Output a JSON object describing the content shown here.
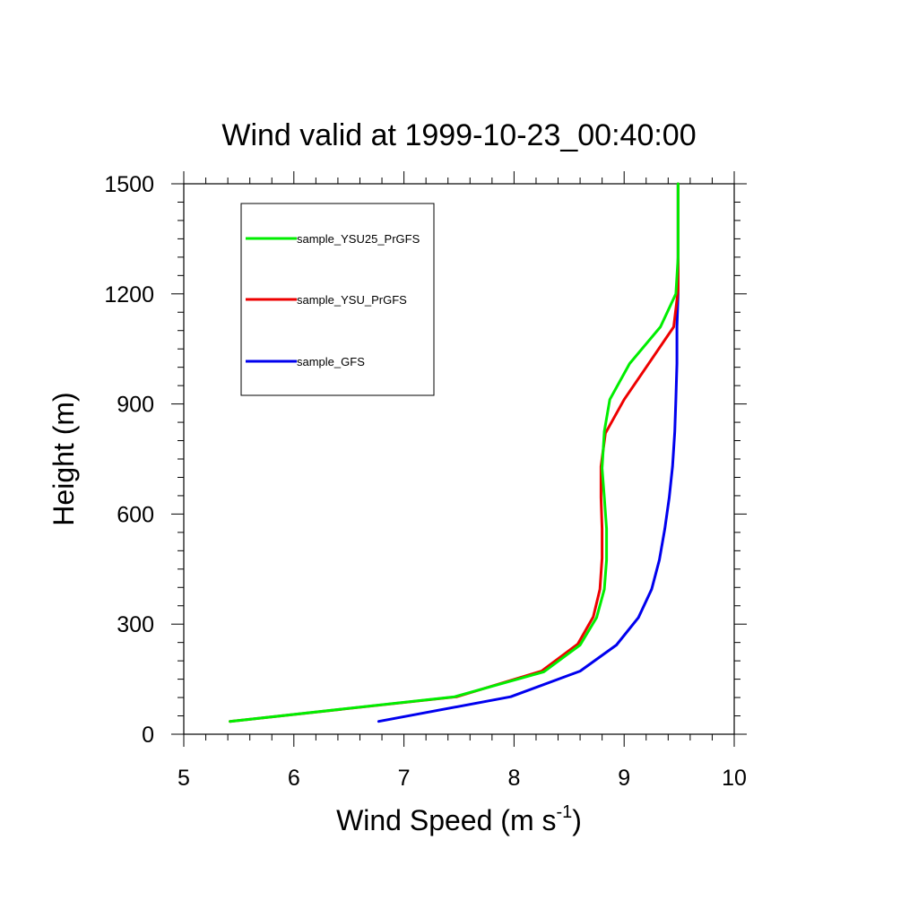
{
  "chart_data": {
    "type": "line",
    "title": "Wind valid at 1999-10-23_00:40:00",
    "xlabel": "Wind Speed (m s",
    "xlabel_sup": "-1",
    "xlabel_end": ")",
    "ylabel": "Height (m)",
    "xlim": [
      5,
      10
    ],
    "ylim": [
      0,
      1500
    ],
    "x_ticks": [
      "5",
      "6",
      "7",
      "8",
      "9",
      "10"
    ],
    "y_ticks": [
      "0",
      "300",
      "600",
      "900",
      "1200",
      "1500"
    ],
    "grid": false,
    "legend_position": "top-left",
    "series": [
      {
        "name": "sample_YSU25_PrGFS",
        "color": "#00ee00",
        "points": [
          [
            5.42,
            35
          ],
          [
            7.46,
            102
          ],
          [
            8.27,
            170
          ],
          [
            8.6,
            243
          ],
          [
            8.75,
            318
          ],
          [
            8.82,
            395
          ],
          [
            8.84,
            475
          ],
          [
            8.84,
            560
          ],
          [
            8.82,
            645
          ],
          [
            8.8,
            725
          ],
          [
            8.82,
            825
          ],
          [
            8.87,
            912
          ],
          [
            9.05,
            1010
          ],
          [
            9.33,
            1110
          ],
          [
            9.47,
            1200
          ],
          [
            9.49,
            1300
          ],
          [
            9.49,
            1500
          ]
        ]
      },
      {
        "name": "sample_YSU_PrGFS",
        "color": "#ee0000",
        "points": [
          [
            5.42,
            35
          ],
          [
            7.48,
            102
          ],
          [
            8.25,
            172
          ],
          [
            8.58,
            246
          ],
          [
            8.72,
            320
          ],
          [
            8.78,
            395
          ],
          [
            8.8,
            480
          ],
          [
            8.8,
            560
          ],
          [
            8.79,
            645
          ],
          [
            8.79,
            730
          ],
          [
            8.83,
            820
          ],
          [
            9.0,
            912
          ],
          [
            9.2,
            1000
          ],
          [
            9.45,
            1110
          ],
          [
            9.49,
            1210
          ],
          [
            9.49,
            1300
          ],
          [
            9.49,
            1500
          ]
        ]
      },
      {
        "name": "sample_GFS",
        "color": "#0000ee",
        "points": [
          [
            6.77,
            35
          ],
          [
            7.97,
            102
          ],
          [
            8.6,
            172
          ],
          [
            8.93,
            243
          ],
          [
            9.13,
            318
          ],
          [
            9.25,
            395
          ],
          [
            9.32,
            475
          ],
          [
            9.37,
            560
          ],
          [
            9.41,
            645
          ],
          [
            9.44,
            730
          ],
          [
            9.46,
            825
          ],
          [
            9.47,
            912
          ],
          [
            9.48,
            1010
          ],
          [
            9.48,
            1110
          ],
          [
            9.49,
            1200
          ],
          [
            9.49,
            1300
          ],
          [
            9.49,
            1500
          ]
        ]
      }
    ]
  }
}
